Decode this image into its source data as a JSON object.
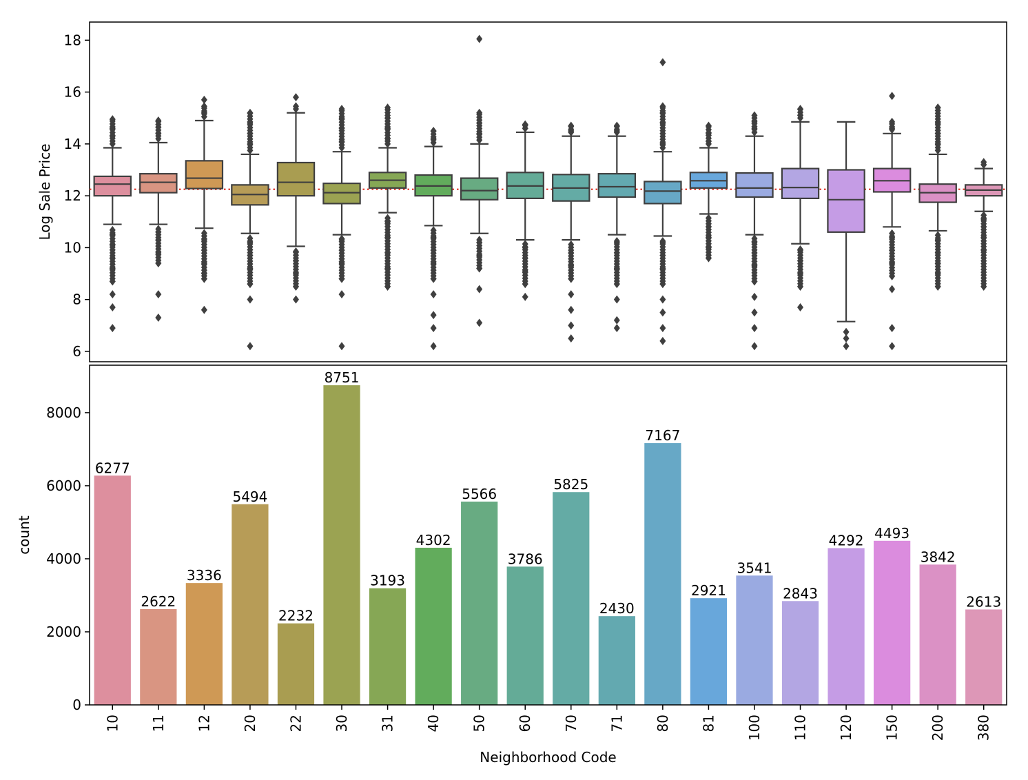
{
  "chart_data": [
    {
      "type": "box",
      "ylabel": "Log Sale Price",
      "ylim": [
        5.6,
        18.7
      ],
      "yticks": [
        6,
        8,
        10,
        12,
        14,
        16,
        18
      ],
      "reference_line": 12.25,
      "categories": [
        "10",
        "11",
        "12",
        "20",
        "22",
        "30",
        "31",
        "40",
        "50",
        "60",
        "70",
        "71",
        "80",
        "81",
        "100",
        "110",
        "120",
        "150",
        "200",
        "380"
      ],
      "colors": [
        "#dd8f9e",
        "#d99582",
        "#cf9955",
        "#b79c57",
        "#a99d51",
        "#9ba352",
        "#86a755",
        "#62ac5c",
        "#68ab82",
        "#64ab97",
        "#64aba5",
        "#63a9b0",
        "#67a8c6",
        "#68a7db",
        "#9aaae1",
        "#b3a6e3",
        "#c59ce5",
        "#db8cde",
        "#db91c5",
        "#dd97b7"
      ],
      "boxes": [
        {
          "q1": 12.0,
          "median": 12.45,
          "q3": 12.75,
          "whisker_low": 10.9,
          "whisker_high": 13.85,
          "fliers_low": [
            6.9,
            7.7,
            8.2,
            8.7,
            9.2,
            9.6,
            10.1,
            10.5
          ],
          "fliers_high": [
            14.3,
            14.6,
            14.95
          ]
        },
        {
          "q1": 12.12,
          "median": 12.52,
          "q3": 12.85,
          "whisker_low": 10.9,
          "whisker_high": 14.05,
          "fliers_low": [
            7.3,
            8.2,
            9.4,
            9.8,
            10.3,
            10.6
          ],
          "fliers_high": [
            14.4,
            14.65,
            14.9
          ]
        },
        {
          "q1": 12.28,
          "median": 12.68,
          "q3": 13.35,
          "whisker_low": 10.75,
          "whisker_high": 14.9,
          "fliers_low": [
            7.6,
            8.8,
            9.0,
            9.4,
            9.9,
            10.3
          ],
          "fliers_high": [
            15.2,
            15.45,
            15.7
          ]
        },
        {
          "q1": 11.65,
          "median": 12.05,
          "q3": 12.42,
          "whisker_low": 10.55,
          "whisker_high": 13.6,
          "fliers_low": [
            6.2,
            8.0,
            8.6,
            9.2,
            9.7,
            10.2
          ],
          "fliers_high": [
            14.0,
            14.4,
            14.8,
            15.2
          ]
        },
        {
          "q1": 12.0,
          "median": 12.52,
          "q3": 13.28,
          "whisker_low": 10.05,
          "whisker_high": 15.2,
          "fliers_low": [
            8.0,
            8.5,
            9.0,
            9.5,
            9.85
          ],
          "fliers_high": [
            15.45,
            15.8
          ]
        },
        {
          "q1": 11.7,
          "median": 12.12,
          "q3": 12.48,
          "whisker_low": 10.5,
          "whisker_high": 13.7,
          "fliers_low": [
            6.2,
            8.2,
            8.8,
            9.4,
            9.9,
            10.3
          ],
          "fliers_high": [
            14.1,
            14.6,
            15.0,
            15.35
          ]
        },
        {
          "q1": 12.3,
          "median": 12.6,
          "q3": 12.9,
          "whisker_low": 11.35,
          "whisker_high": 13.85,
          "fliers_low": [
            8.5,
            9.2,
            9.8,
            10.4,
            11.0
          ],
          "fliers_high": [
            14.2,
            14.6,
            15.0,
            15.4
          ]
        },
        {
          "q1": 12.0,
          "median": 12.38,
          "q3": 12.8,
          "whisker_low": 10.85,
          "whisker_high": 13.9,
          "fliers_low": [
            6.2,
            6.9,
            7.4,
            8.2,
            8.8,
            9.4,
            9.9,
            10.4
          ],
          "fliers_high": [
            14.2,
            14.5
          ]
        },
        {
          "q1": 11.85,
          "median": 12.2,
          "q3": 12.68,
          "whisker_low": 10.55,
          "whisker_high": 14.0,
          "fliers_low": [
            7.1,
            8.4,
            9.2,
            9.7,
            10.2
          ],
          "fliers_high": [
            14.4,
            14.8,
            15.2,
            18.05
          ]
        },
        {
          "q1": 11.9,
          "median": 12.38,
          "q3": 12.9,
          "whisker_low": 10.3,
          "whisker_high": 14.45,
          "fliers_low": [
            8.1,
            8.6,
            9.1,
            9.6,
            10.0
          ],
          "fliers_high": [
            14.6,
            14.75
          ]
        },
        {
          "q1": 11.8,
          "median": 12.3,
          "q3": 12.82,
          "whisker_low": 10.3,
          "whisker_high": 14.3,
          "fliers_low": [
            6.5,
            7.0,
            7.6,
            8.2,
            8.8,
            9.3,
            9.8
          ],
          "fliers_high": [
            14.5,
            14.7
          ]
        },
        {
          "q1": 11.95,
          "median": 12.35,
          "q3": 12.85,
          "whisker_low": 10.5,
          "whisker_high": 14.3,
          "fliers_low": [
            6.9,
            7.2,
            8.0,
            8.6,
            9.2,
            9.8,
            10.2
          ],
          "fliers_high": [
            14.5,
            14.7
          ]
        },
        {
          "q1": 11.7,
          "median": 12.18,
          "q3": 12.55,
          "whisker_low": 10.45,
          "whisker_high": 13.7,
          "fliers_low": [
            6.4,
            6.9,
            7.5,
            8.0,
            8.6,
            9.2,
            9.7,
            10.2
          ],
          "fliers_high": [
            14.0,
            14.4,
            14.8,
            15.2,
            15.45,
            17.15
          ]
        },
        {
          "q1": 12.3,
          "median": 12.58,
          "q3": 12.9,
          "whisker_low": 11.3,
          "whisker_high": 13.85,
          "fliers_low": [
            9.6,
            10.0,
            10.4,
            10.8
          ],
          "fliers_high": [
            14.1,
            14.4,
            14.7
          ]
        },
        {
          "q1": 11.95,
          "median": 12.3,
          "q3": 12.88,
          "whisker_low": 10.5,
          "whisker_high": 14.3,
          "fliers_low": [
            6.2,
            6.9,
            7.5,
            8.1,
            8.7,
            9.3,
            9.8,
            10.2
          ],
          "fliers_high": [
            14.6,
            14.85,
            15.1
          ]
        },
        {
          "q1": 11.9,
          "median": 12.32,
          "q3": 13.05,
          "whisker_low": 10.15,
          "whisker_high": 14.85,
          "fliers_low": [
            7.7,
            8.5,
            9.0,
            9.5,
            9.9
          ],
          "fliers_high": [
            15.1,
            15.35
          ]
        },
        {
          "q1": 10.6,
          "median": 11.85,
          "q3": 13.0,
          "whisker_low": 7.15,
          "whisker_high": 14.85,
          "fliers_low": [
            6.2,
            6.5,
            6.75
          ],
          "fliers_high": []
        },
        {
          "q1": 12.15,
          "median": 12.58,
          "q3": 13.05,
          "whisker_low": 10.8,
          "whisker_high": 14.4,
          "fliers_low": [
            6.2,
            6.9,
            8.4,
            8.9,
            9.4,
            9.9,
            10.4
          ],
          "fliers_high": [
            14.6,
            14.85,
            15.85
          ]
        },
        {
          "q1": 11.75,
          "median": 12.12,
          "q3": 12.45,
          "whisker_low": 10.65,
          "whisker_high": 13.6,
          "fliers_low": [
            8.5,
            9.0,
            9.4,
            9.8,
            10.3
          ],
          "fliers_high": [
            14.0,
            14.4,
            14.8,
            15.4
          ]
        },
        {
          "q1": 12.0,
          "median": 12.22,
          "q3": 12.42,
          "whisker_low": 11.4,
          "whisker_high": 13.05,
          "fliers_low": [
            8.5,
            9.9,
            10.4,
            10.8,
            11.1
          ],
          "fliers_high": [
            13.2,
            13.3
          ]
        }
      ]
    },
    {
      "type": "bar",
      "xlabel": "Neighborhood Code",
      "ylabel": "count",
      "ylim": [
        0,
        9300
      ],
      "yticks": [
        0,
        2000,
        4000,
        6000,
        8000
      ],
      "categories": [
        "10",
        "11",
        "12",
        "20",
        "22",
        "30",
        "31",
        "40",
        "50",
        "60",
        "70",
        "71",
        "80",
        "81",
        "100",
        "110",
        "120",
        "150",
        "200",
        "380"
      ],
      "values": [
        6277,
        2622,
        3336,
        5494,
        2232,
        8751,
        3193,
        4302,
        5566,
        3786,
        5825,
        2430,
        7167,
        2921,
        3541,
        2843,
        4292,
        4493,
        3842,
        2613
      ],
      "value_labels": [
        "6277",
        "2622",
        "3336",
        "5494",
        "2232",
        "8751",
        "3193",
        "4302",
        "5566",
        "3786",
        "5825",
        "2430",
        "7167",
        "2921",
        "3541",
        "2843",
        "4292",
        "4493",
        "3842",
        "2613"
      ],
      "colors": [
        "#dd8f9e",
        "#d99582",
        "#cf9955",
        "#b79c57",
        "#a99d51",
        "#9ba352",
        "#86a755",
        "#62ac5c",
        "#68ab82",
        "#64ab97",
        "#64aba5",
        "#63a9b0",
        "#67a8c6",
        "#68a7db",
        "#9aaae1",
        "#b3a6e3",
        "#c59ce5",
        "#db8cde",
        "#db91c5",
        "#dd97b7"
      ]
    }
  ]
}
